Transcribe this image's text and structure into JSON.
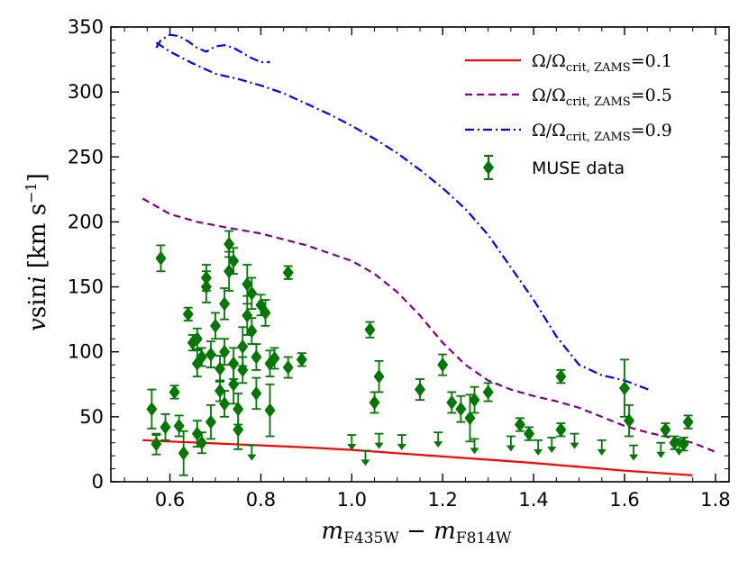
{
  "chart_data": {
    "type": "scatter",
    "title": "",
    "xlabel": "m_F435W − m_F814W",
    "ylabel": "vsini [km s−1]",
    "xlim": [
      0.47,
      1.83
    ],
    "ylim": [
      0,
      350
    ],
    "xticks": [
      0.6,
      0.8,
      1.0,
      1.2,
      1.4,
      1.6,
      1.8
    ],
    "xtick_labels": [
      "0.6",
      "0.8",
      "1.0",
      "1.2",
      "1.4",
      "1.6",
      "1.8"
    ],
    "yticks": [
      0,
      50,
      100,
      150,
      200,
      250,
      300,
      350
    ],
    "ytick_labels": [
      "0",
      "50",
      "100",
      "150",
      "200",
      "250",
      "300",
      "350"
    ],
    "legend_position": "top-right",
    "series": [
      {
        "name": "Ω/Ωcrit, ZAMS = 0.1",
        "kind": "line",
        "style": "solid",
        "color": "#ff0000",
        "x": [
          0.54,
          0.6,
          0.7,
          0.8,
          0.9,
          1.0,
          1.1,
          1.2,
          1.3,
          1.4,
          1.5,
          1.6,
          1.75
        ],
        "y": [
          32,
          31,
          29.5,
          28,
          26.5,
          24.5,
          22,
          19.5,
          17,
          14.5,
          11.5,
          8.5,
          5
        ]
      },
      {
        "name": "Ω/Ωcrit, ZAMS = 0.5",
        "kind": "line",
        "style": "dashed",
        "color": "#800080",
        "x": [
          0.54,
          0.56,
          0.6,
          0.66,
          0.72,
          0.8,
          0.9,
          1.0,
          1.05,
          1.1,
          1.15,
          1.2,
          1.25,
          1.3,
          1.35,
          1.4,
          1.45,
          1.5,
          1.55,
          1.6,
          1.65,
          1.7,
          1.75,
          1.8
        ],
        "y": [
          218,
          214,
          206,
          200,
          196,
          191,
          182,
          170,
          160,
          146,
          128,
          107,
          90,
          78,
          71,
          66,
          62,
          57,
          50,
          43,
          38,
          34,
          30,
          23
        ]
      },
      {
        "name": "Ω/Ωcrit, ZAMS = 0.9",
        "kind": "line",
        "style": "dashdot",
        "color": "#0000ff",
        "x": [
          0.57,
          0.6,
          0.65,
          0.7,
          0.75,
          0.8,
          0.85,
          0.9,
          0.95,
          1.0,
          1.05,
          1.1,
          1.15,
          1.2,
          1.25,
          1.3,
          1.35,
          1.4,
          1.45,
          1.5,
          1.55,
          1.6,
          1.66
        ],
        "y": [
          338,
          331,
          322,
          314,
          310,
          305,
          299,
          291,
          283,
          274,
          264,
          253,
          240,
          226,
          210,
          190,
          165,
          140,
          112,
          90,
          82,
          78,
          70
        ]
      },
      {
        "name": "Ω/Ωcrit, ZAMS = 0.9 (upper segment)",
        "kind": "line",
        "style": "dashdot",
        "color": "#0000ff",
        "x": [
          0.57,
          0.58,
          0.6,
          0.62,
          0.64,
          0.66,
          0.68,
          0.7,
          0.72,
          0.74,
          0.76,
          0.78,
          0.8,
          0.82
        ],
        "y": [
          334,
          340,
          344,
          343,
          339,
          334,
          331,
          335,
          336,
          334,
          330,
          326,
          323,
          323
        ]
      },
      {
        "name": "MUSE data",
        "kind": "errorbar",
        "color": "#007700",
        "points": [
          [
            0.58,
            172,
            10
          ],
          [
            0.56,
            56,
            15
          ],
          [
            0.57,
            29,
            8
          ],
          [
            0.59,
            42,
            10
          ],
          [
            0.61,
            69,
            5
          ],
          [
            0.62,
            43,
            8
          ],
          [
            0.63,
            22,
            17
          ],
          [
            0.64,
            129,
            5
          ],
          [
            0.65,
            107,
            6
          ],
          [
            0.66,
            110,
            8
          ],
          [
            0.66,
            91,
            10
          ],
          [
            0.67,
            96,
            7
          ],
          [
            0.66,
            37,
            10
          ],
          [
            0.67,
            30,
            8
          ],
          [
            0.68,
            150,
            12
          ],
          [
            0.68,
            157,
            10
          ],
          [
            0.69,
            46,
            13
          ],
          [
            0.69,
            98,
            10
          ],
          [
            0.7,
            120,
            10
          ],
          [
            0.71,
            87,
            10
          ],
          [
            0.71,
            70,
            8
          ],
          [
            0.72,
            60,
            10
          ],
          [
            0.72,
            100,
            10
          ],
          [
            0.72,
            137,
            12
          ],
          [
            0.73,
            162,
            15
          ],
          [
            0.73,
            183,
            10
          ],
          [
            0.74,
            170,
            10
          ],
          [
            0.74,
            91,
            12
          ],
          [
            0.74,
            75,
            15
          ],
          [
            0.75,
            40,
            15
          ],
          [
            0.75,
            56,
            12
          ],
          [
            0.76,
            86,
            10
          ],
          [
            0.76,
            104,
            15
          ],
          [
            0.77,
            128,
            15
          ],
          [
            0.77,
            152,
            15
          ],
          [
            0.78,
            145,
            12
          ],
          [
            0.78,
            116,
            10
          ],
          [
            0.79,
            96,
            10
          ],
          [
            0.8,
            136,
            8
          ],
          [
            0.81,
            130,
            10
          ],
          [
            0.79,
            68,
            12
          ],
          [
            0.82,
            91,
            10
          ],
          [
            0.82,
            55,
            20
          ],
          [
            0.83,
            95,
            8
          ],
          [
            0.86,
            161,
            5
          ],
          [
            0.86,
            88,
            8
          ],
          [
            0.89,
            94,
            5
          ],
          [
            1.04,
            117,
            6
          ],
          [
            1.05,
            61,
            8
          ],
          [
            1.06,
            81,
            12
          ],
          [
            1.15,
            71,
            8
          ],
          [
            1.2,
            90,
            8
          ],
          [
            1.22,
            61,
            8
          ],
          [
            1.24,
            56,
            10
          ],
          [
            1.26,
            49,
            18
          ],
          [
            1.27,
            63,
            10
          ],
          [
            1.3,
            69,
            7
          ],
          [
            1.37,
            44,
            5
          ],
          [
            1.39,
            37,
            5
          ],
          [
            1.46,
            81,
            5
          ],
          [
            1.46,
            40,
            5
          ],
          [
            1.6,
            72,
            22
          ],
          [
            1.61,
            47,
            12
          ],
          [
            1.69,
            40,
            5
          ],
          [
            1.71,
            30,
            5
          ],
          [
            1.73,
            29,
            5
          ],
          [
            1.74,
            46,
            5
          ]
        ],
        "upper_limits_x": [
          0.57,
          0.78,
          1.0,
          1.03,
          1.06,
          1.11,
          1.19,
          1.27,
          1.35,
          1.41,
          1.44,
          1.49,
          1.55,
          1.62,
          1.68,
          1.72
        ],
        "upper_limits_y": [
          36,
          28,
          36,
          24,
          37,
          36,
          38,
          33,
          35,
          32,
          34,
          37,
          32,
          28,
          30,
          32
        ]
      }
    ],
    "legend": [
      {
        "label": "Ω/Ω",
        "sub": "crit, ZAMS",
        "suffix": "=0.1"
      },
      {
        "label": "Ω/Ω",
        "sub": "crit, ZAMS",
        "suffix": "=0.5"
      },
      {
        "label": "Ω/Ω",
        "sub": "crit, ZAMS",
        "suffix": "=0.9"
      },
      {
        "label": "MUSE data"
      }
    ]
  }
}
